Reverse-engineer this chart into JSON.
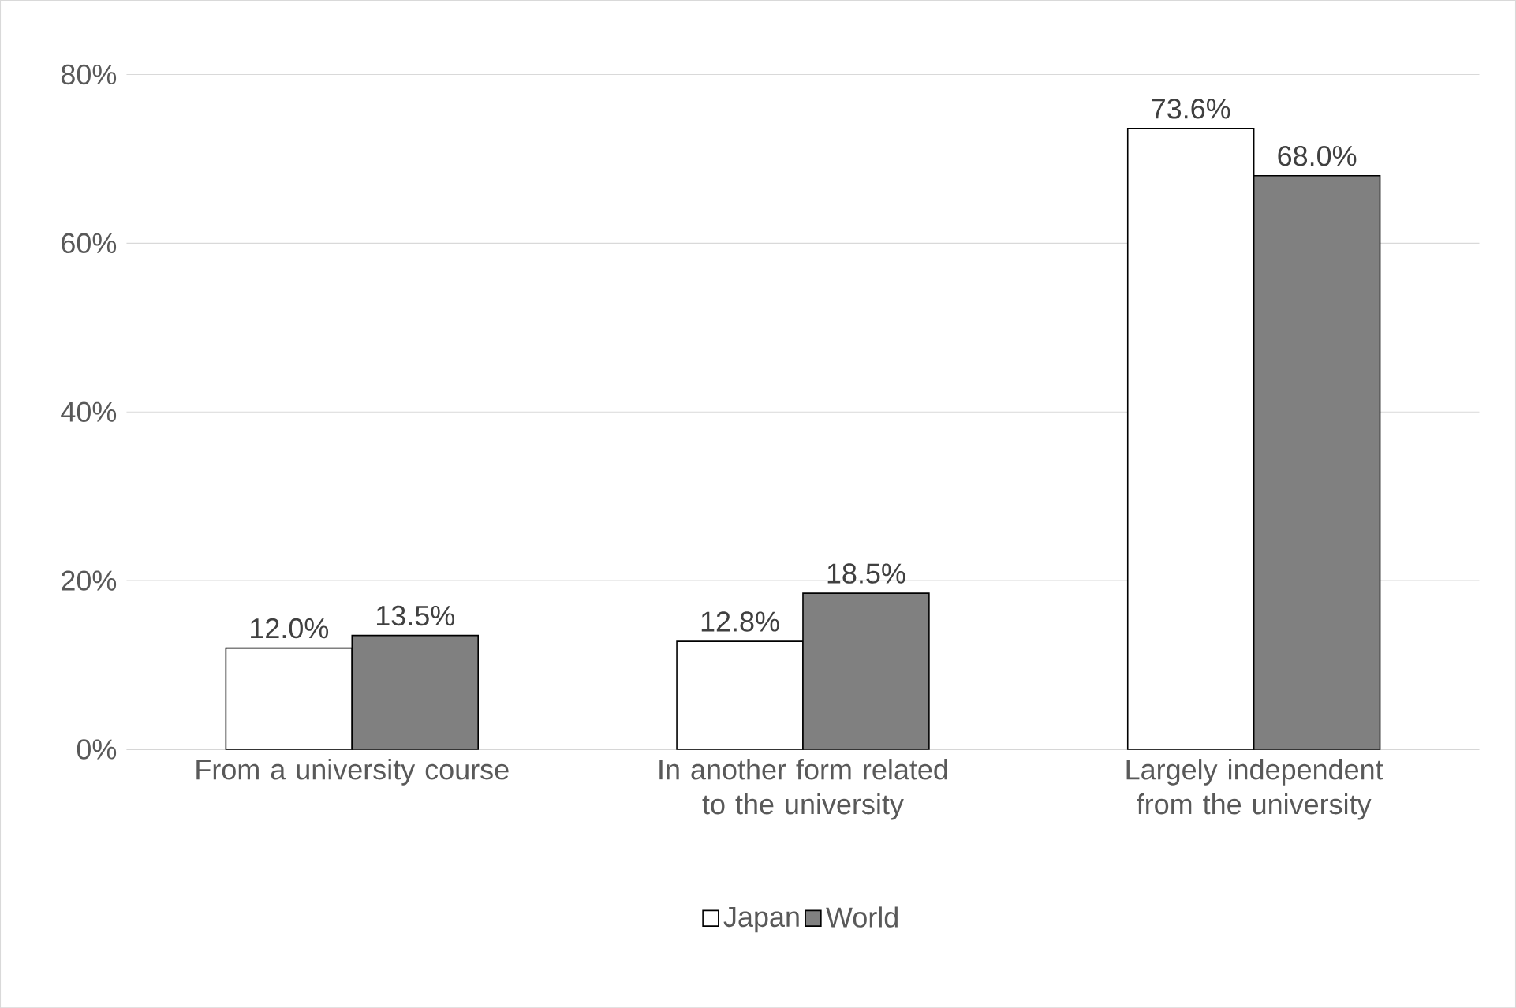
{
  "chart_data": {
    "type": "bar",
    "categories": [
      "From a university course",
      "In another form related to the university",
      "Largely independent from the university"
    ],
    "series": [
      {
        "name": "Japan",
        "color": "#ffffff",
        "values": [
          12.0,
          12.8,
          73.6
        ],
        "value_labels": [
          "12.0%",
          "12.8%",
          "73.6%"
        ]
      },
      {
        "name": "World",
        "color": "#808080",
        "values": [
          13.5,
          18.5,
          68.0
        ],
        "value_labels": [
          "13.5%",
          "18.5%",
          "68.0%"
        ]
      }
    ],
    "ylim": [
      0,
      80
    ],
    "yticks": [
      {
        "value": 0,
        "label": "0%"
      },
      {
        "value": 20,
        "label": "20%"
      },
      {
        "value": 40,
        "label": "40%"
      },
      {
        "value": 60,
        "label": "60%"
      },
      {
        "value": 80,
        "label": "80%"
      }
    ],
    "grid": "y",
    "legend": "bottom"
  }
}
